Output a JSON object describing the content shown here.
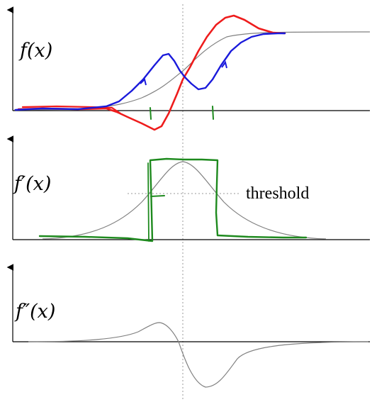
{
  "labels": {
    "f": "f(x)",
    "fprime": "f′(x)",
    "fdoubleprime": "f″(x)",
    "threshold": "threshold"
  },
  "colors": {
    "curve": "#808080",
    "axis": "#000000",
    "guide": "#999999",
    "annotation_blue": "#1a1adb",
    "annotation_red": "#ee1c1c",
    "annotation_green": "#1e8a1e"
  }
}
